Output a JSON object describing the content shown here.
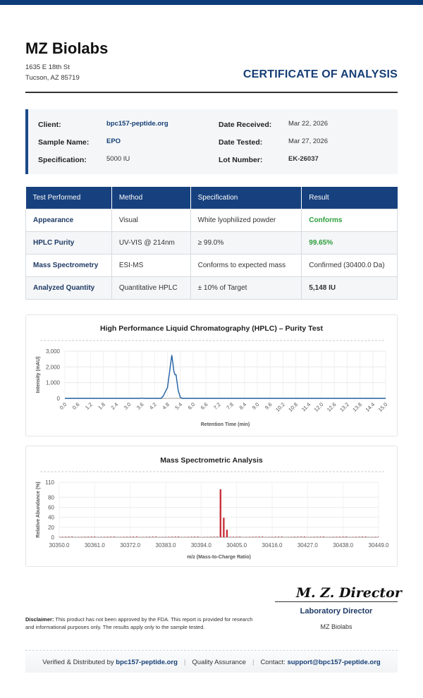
{
  "header": {
    "company": "MZ Biolabs",
    "address_line1": "1635 E 18th St",
    "address_line2": "Tucson, AZ 85719",
    "doc_title": "CERTIFICATE OF ANALYSIS"
  },
  "info": {
    "client_label": "Client:",
    "client_value": "bpc157-peptide.org",
    "sample_label": "Sample Name:",
    "sample_value": "EPO",
    "spec_label": "Specification:",
    "spec_value": "5000 IU",
    "received_label": "Date Received:",
    "received_value": "Mar 22, 2026",
    "tested_label": "Date Tested:",
    "tested_value": "Mar 27, 2026",
    "lot_label": "Lot Number:",
    "lot_value": "EK-26037"
  },
  "table": {
    "headers": [
      "Test Performed",
      "Method",
      "Specification",
      "Result"
    ],
    "rows": [
      [
        "Appearance",
        "Visual",
        "White lyophilized powder",
        "Conforms"
      ],
      [
        "HPLC Purity",
        "UV-VIS @ 214nm",
        "≥ 99.0%",
        "99.65%"
      ],
      [
        "Mass Spectrometry",
        "ESI-MS",
        "Conforms to expected mass",
        "Confirmed (30400.0 Da)"
      ],
      [
        "Analyzed Quantity",
        "Quantitative HPLC",
        "± 10% of Target",
        "5,148 IU"
      ]
    ]
  },
  "chart_data": [
    {
      "type": "line",
      "title": "High Performance Liquid Chromatography (HPLC) – Purity Test",
      "xlabel": "Retention Time (min)",
      "ylabel": "Intensity (mAU)",
      "xlim": [
        0,
        15
      ],
      "ylim": [
        0,
        3000
      ],
      "yticks": [
        "0",
        "1,000",
        "2,000",
        "3,000"
      ],
      "xticks": [
        "0.0",
        "0.6",
        "1.2",
        "1.8",
        "2.4",
        "3.0",
        "3.6",
        "4.2",
        "4.8",
        "5.4",
        "6.0",
        "6.6",
        "7.2",
        "7.8",
        "8.4",
        "9.0",
        "9.6",
        "10.2",
        "10.8",
        "11.4",
        "12.0",
        "12.6",
        "13.2",
        "13.8",
        "14.4",
        "15.0"
      ],
      "color": "#1f5fa0",
      "grid": true,
      "points": [
        [
          0,
          0
        ],
        [
          3.5,
          0
        ],
        [
          3.6,
          15
        ],
        [
          3.7,
          0
        ],
        [
          4.5,
          0
        ],
        [
          4.6,
          150
        ],
        [
          4.8,
          700
        ],
        [
          4.9,
          1700
        ],
        [
          5.0,
          2750
        ],
        [
          5.1,
          1700
        ],
        [
          5.15,
          1500
        ],
        [
          5.2,
          1500
        ],
        [
          5.3,
          500
        ],
        [
          5.4,
          60
        ],
        [
          5.5,
          0
        ],
        [
          15,
          0
        ]
      ]
    },
    {
      "type": "bar",
      "title": "Mass Spectrometric Analysis",
      "xlabel": "m/z (Mass-to-Charge Ratio)",
      "ylabel": "Relative Abundance (%)",
      "xlim": [
        30350,
        30449
      ],
      "ylim": [
        0,
        110
      ],
      "yticks": [
        "0",
        "20",
        "40",
        "60",
        "80",
        "110"
      ],
      "xticks": [
        "30350.0",
        "30361.0",
        "30372.0",
        "30383.0",
        "30394.0",
        "30405.0",
        "30416.0",
        "30427.0",
        "30438.0",
        "30449.0"
      ],
      "color": "#c8323c",
      "grid": true,
      "peaks": [
        [
          30400,
          96
        ],
        [
          30401,
          39
        ],
        [
          30402,
          15
        ]
      ],
      "noise_level": 2
    }
  ],
  "signature": {
    "signature_text": "M. Z. Director",
    "title": "Laboratory Director",
    "org": "MZ Biolabs"
  },
  "disclaimer": {
    "label": "Disclaimer:",
    "text": "This product has not been approved by the FDA. This report is provided for research and informational purposes only. The results apply only to the sample tested."
  },
  "footer": {
    "verified_text": "Verified & Distributed by",
    "verified_link": "bpc157-peptide.org",
    "qa_text": "Quality Assurance",
    "contact_text": "Contact:",
    "contact_link": "support@bpc157-peptide.org"
  },
  "colors": {
    "brand": "#17417e",
    "conforms": "#2d9d3a",
    "hplc_line": "#1f5fa0",
    "ms_bars": "#c8323c"
  }
}
